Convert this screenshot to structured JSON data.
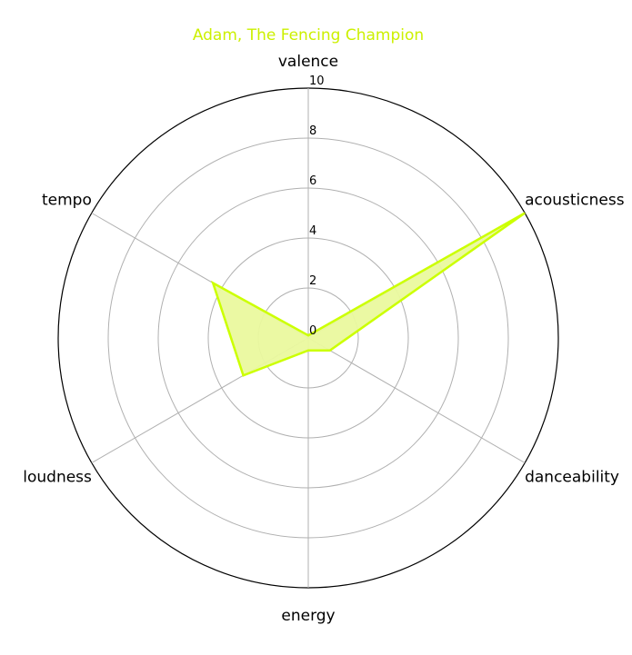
{
  "chart_data": {
    "type": "radar",
    "title": "Adam, The Fencing Champion",
    "title_color": "#ccf000",
    "series_color": "#ccff00",
    "fill_color": "#eaf99e",
    "grid_color": "#b0b0b0",
    "categories": [
      "valence",
      "acousticness",
      "danceability",
      "energy",
      "loudness",
      "tempo"
    ],
    "series": [
      {
        "values": [
          0.1,
          10.0,
          1.0,
          0.5,
          3.0,
          4.4
        ]
      }
    ],
    "rlim": [
      0,
      10
    ],
    "r_ticks": [
      "0",
      "2",
      "4",
      "6",
      "8",
      "10"
    ],
    "grid": true
  }
}
